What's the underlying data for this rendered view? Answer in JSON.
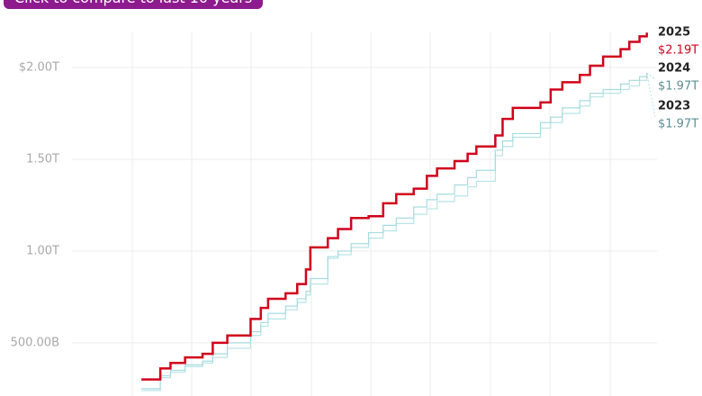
{
  "button": {
    "label": "Click to compare to last 10 years"
  },
  "chart_data": {
    "type": "line",
    "step": true,
    "x": [
      11,
      24,
      31,
      41,
      53,
      60,
      70,
      86,
      93,
      98,
      110,
      118,
      124,
      127,
      139,
      146,
      155,
      167,
      177,
      186,
      198,
      207,
      214,
      226,
      235,
      241,
      254,
      259,
      266,
      285,
      292,
      300,
      312,
      319,
      328,
      340,
      346,
      353,
      358
    ],
    "xlim": [
      -15,
      365
    ],
    "ylim": [
      0.21,
      2.27
    ],
    "yticks": [
      {
        "value": 0.5,
        "label": "500.00B"
      },
      {
        "value": 1,
        "label": "1.00T"
      },
      {
        "value": 1.5,
        "label": "1.50T"
      },
      {
        "value": 2,
        "label": "$2.00T"
      }
    ],
    "grid": true,
    "series": [
      {
        "name": "2023",
        "color": "#b9e3e6",
        "label_color": "#5f8f94",
        "end_label": "$1.97T",
        "values": [
          0.24,
          0.31,
          0.34,
          0.37,
          0.39,
          0.42,
          0.47,
          0.54,
          0.59,
          0.63,
          0.68,
          0.72,
          0.76,
          0.82,
          0.96,
          0.98,
          1.02,
          1.07,
          1.11,
          1.15,
          1.2,
          1.23,
          1.27,
          1.3,
          1.35,
          1.38,
          1.52,
          1.57,
          1.62,
          1.67,
          1.7,
          1.75,
          1.79,
          1.84,
          1.86,
          1.88,
          1.9,
          1.93,
          1.97
        ]
      },
      {
        "name": "2024",
        "color": "#a5dbe0",
        "label_color": "#5f8f94",
        "end_label": "$1.97T",
        "values": [
          0.25,
          0.32,
          0.35,
          0.38,
          0.4,
          0.44,
          0.5,
          0.56,
          0.61,
          0.66,
          0.7,
          0.74,
          0.78,
          0.85,
          0.97,
          1.0,
          1.04,
          1.1,
          1.14,
          1.18,
          1.24,
          1.28,
          1.31,
          1.36,
          1.4,
          1.44,
          1.55,
          1.6,
          1.64,
          1.7,
          1.73,
          1.78,
          1.82,
          1.86,
          1.88,
          1.91,
          1.93,
          1.95,
          1.97
        ]
      },
      {
        "name": "2025",
        "color": "#d0021b",
        "label_color": "#d0021b",
        "end_label": "$2.19T",
        "values": [
          0.3,
          0.36,
          0.39,
          0.42,
          0.44,
          0.5,
          0.54,
          0.63,
          0.69,
          0.74,
          0.77,
          0.82,
          0.9,
          1.02,
          1.07,
          1.12,
          1.18,
          1.19,
          1.26,
          1.31,
          1.34,
          1.41,
          1.45,
          1.49,
          1.53,
          1.57,
          1.63,
          1.72,
          1.78,
          1.81,
          1.88,
          1.92,
          1.96,
          2.01,
          2.06,
          2.1,
          2.14,
          2.17,
          2.19
        ]
      }
    ]
  }
}
